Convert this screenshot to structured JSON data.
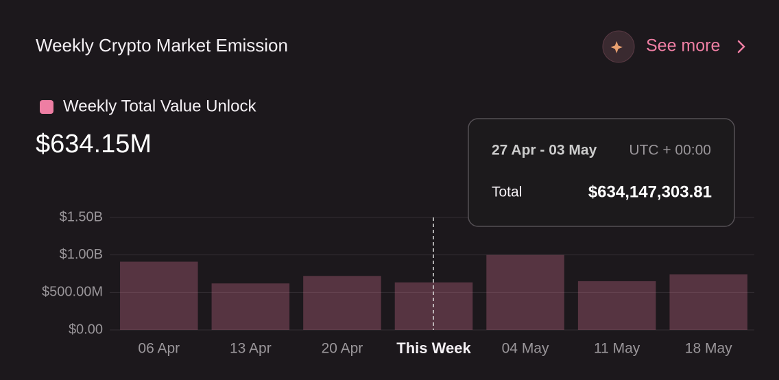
{
  "chart_data": {
    "type": "bar",
    "title": "Weekly Crypto Market Emission",
    "headline": "$634.15M",
    "categories": [
      "06 Apr",
      "13 Apr",
      "20 Apr",
      "This Week",
      "04 May",
      "11 May",
      "18 May"
    ],
    "series": [
      {
        "name": "Weekly Total Value Unlock",
        "color": "#ee7ea3",
        "values": [
          910000000,
          620000000,
          720000000,
          634147303.81,
          1000000000,
          650000000,
          740000000
        ]
      }
    ],
    "ylim": [
      0,
      1500000000
    ],
    "yticks": [
      {
        "value": 0,
        "label": "$0.00"
      },
      {
        "value": 500000000,
        "label": "$500.00M"
      },
      {
        "value": 1000000000,
        "label": "$1.00B"
      },
      {
        "value": 1500000000,
        "label": "$1.50B"
      }
    ],
    "grid": true
  },
  "see_more": "See more",
  "tooltip": {
    "range": "27 Apr - 03 May",
    "timezone": "UTC + 00:00",
    "total_label": "Total",
    "total_value": "$634,147,303.81"
  }
}
